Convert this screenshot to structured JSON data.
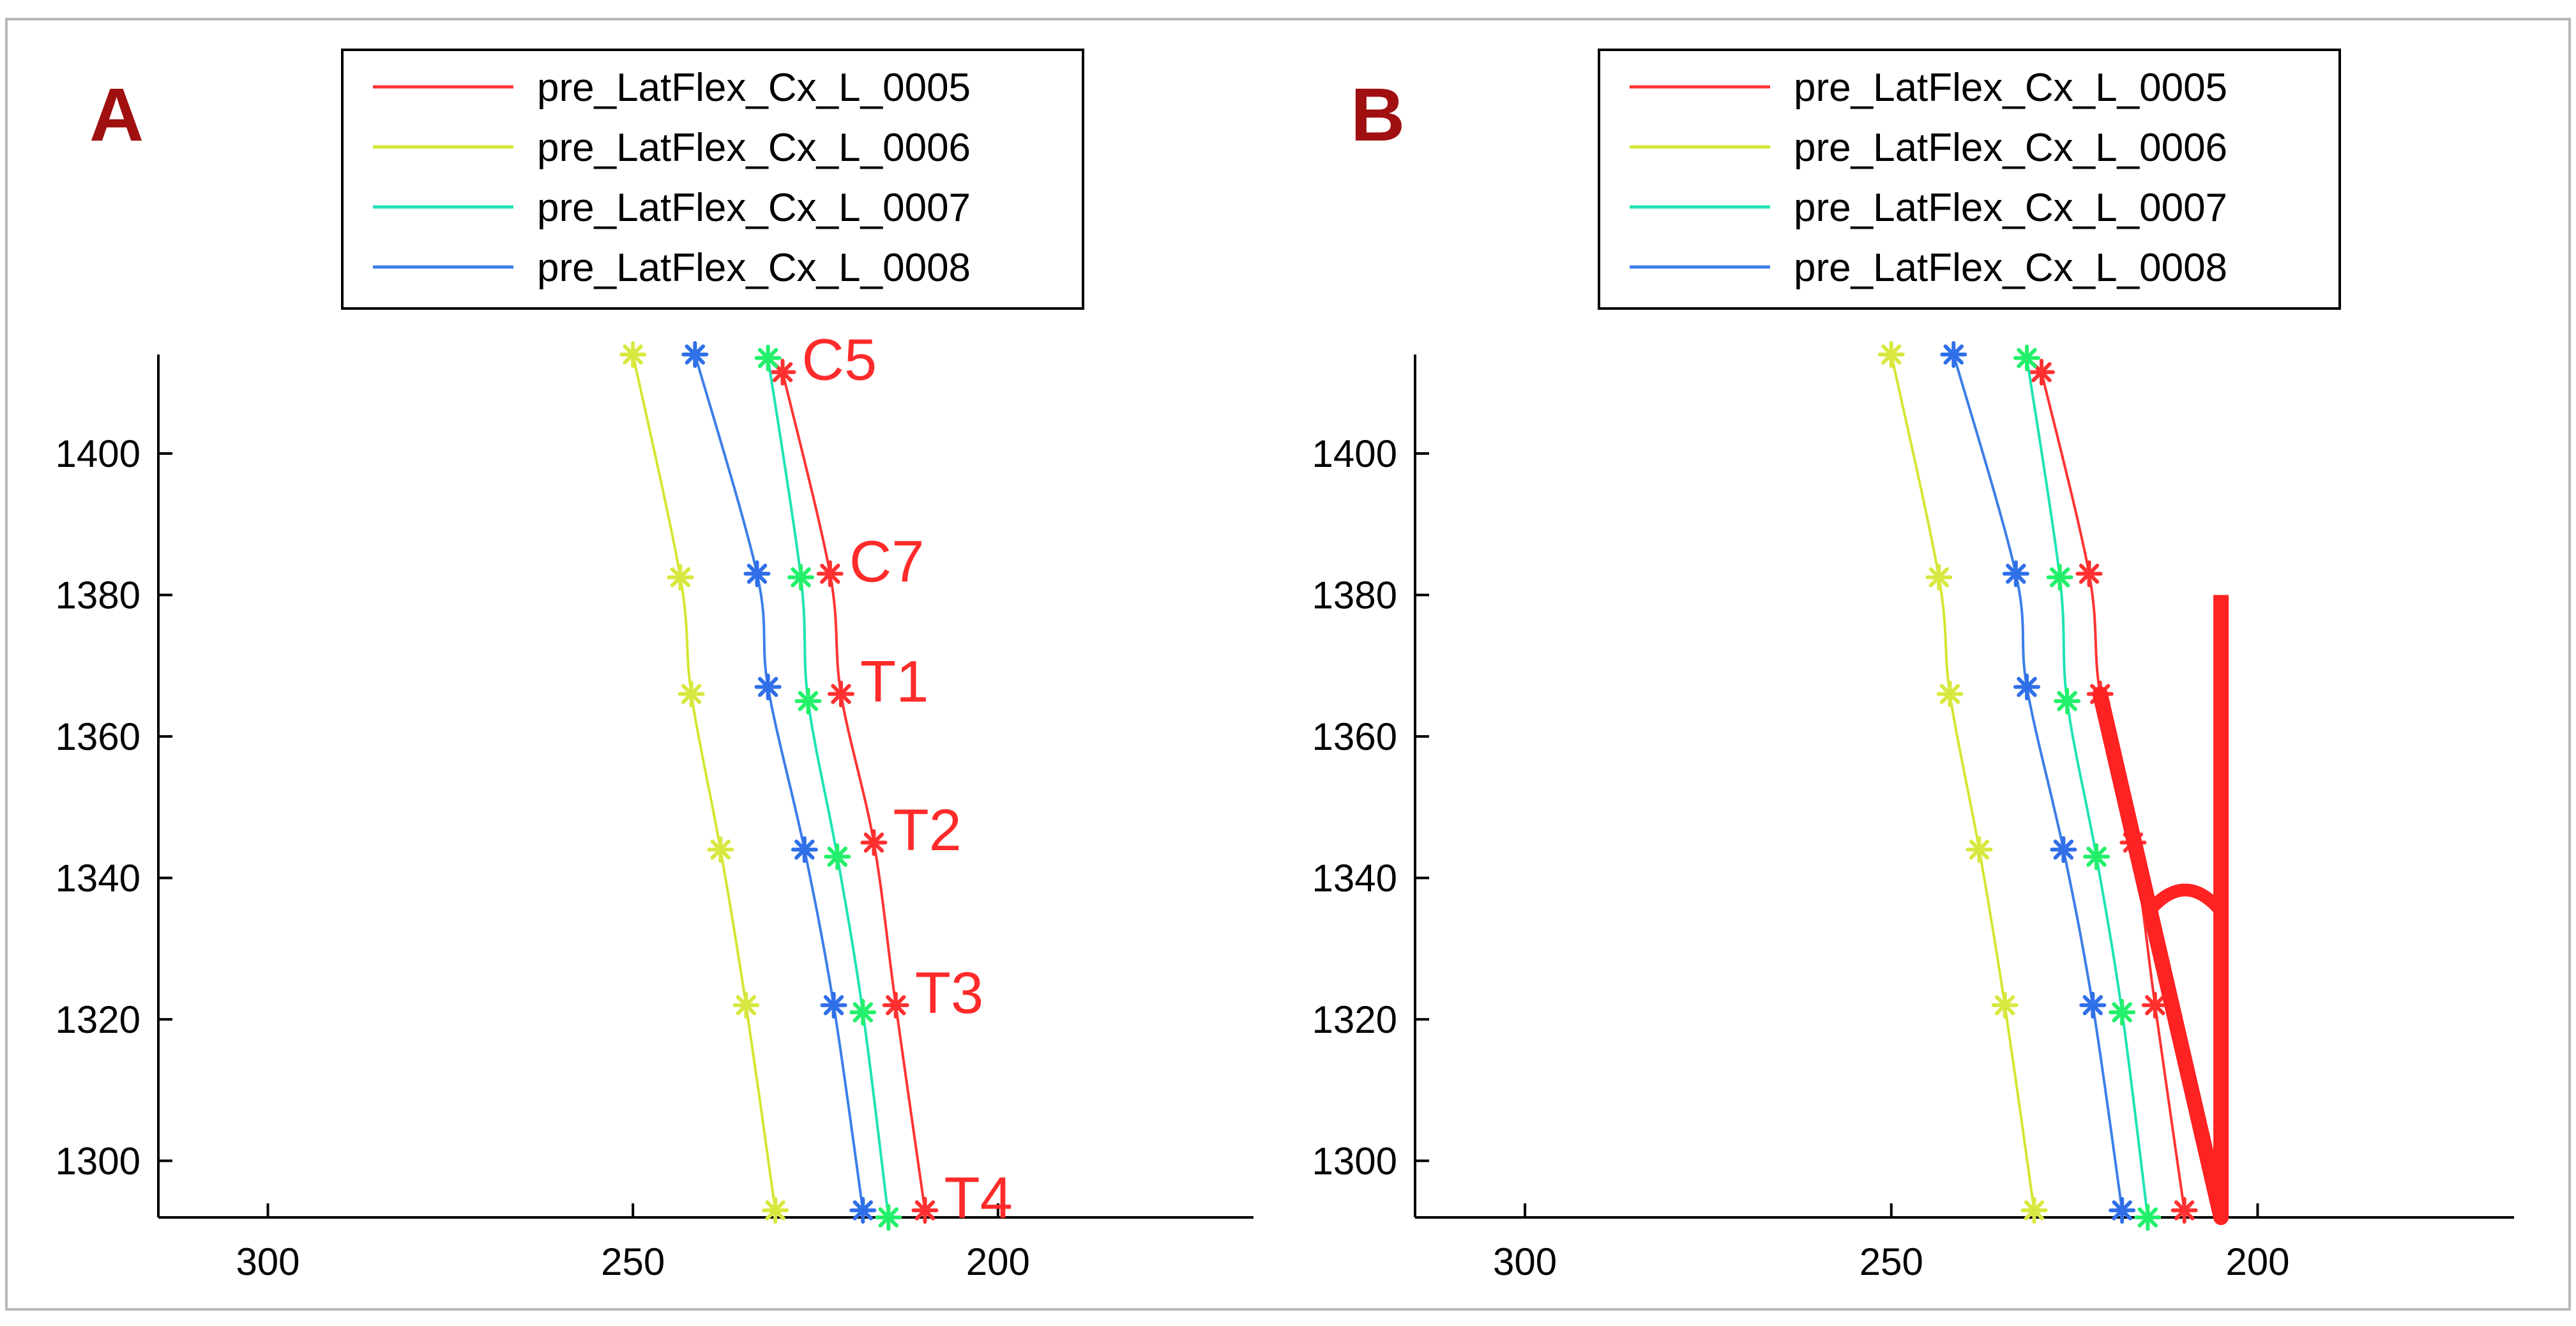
{
  "chart_data": [
    {
      "panel_label": "A",
      "type": "line",
      "title": "",
      "xlabel": "",
      "ylabel": "",
      "x_reversed": true,
      "xlim": [
        315,
        165
      ],
      "ylim": [
        1292,
        1414
      ],
      "x_ticks": [
        300,
        250,
        200
      ],
      "y_ticks": [
        1300,
        1320,
        1340,
        1360,
        1380,
        1400
      ],
      "x_tick_labels": [
        "300",
        "250",
        "200"
      ],
      "y_tick_labels": [
        "1300",
        "1320",
        "1340",
        "1360",
        "1380",
        "1400"
      ],
      "legend_position": "top",
      "series": [
        {
          "name": "pre_LatFlex_Cx_L_0005",
          "color": "#ff3333",
          "marker_color": "#ff3030",
          "points": [
            [
              229.5,
              1411.5
            ],
            [
              223,
              1383
            ],
            [
              221.5,
              1366
            ],
            [
              217,
              1345
            ],
            [
              214,
              1322
            ],
            [
              210,
              1293
            ]
          ]
        },
        {
          "name": "pre_LatFlex_Cx_L_0006",
          "color": "#d4e632",
          "marker_color": "#d8e840",
          "points": [
            [
              250,
              1414
            ],
            [
              243.5,
              1382.5
            ],
            [
              242,
              1366
            ],
            [
              238,
              1344
            ],
            [
              234.5,
              1322
            ],
            [
              230.5,
              1293
            ]
          ]
        },
        {
          "name": "pre_LatFlex_Cx_L_0007",
          "color": "#1ee3b4",
          "marker_color": "#22f06a",
          "points": [
            [
              231.5,
              1413.5
            ],
            [
              227,
              1382.5
            ],
            [
              226,
              1365
            ],
            [
              222,
              1343
            ],
            [
              218.5,
              1321
            ],
            [
              215,
              1292
            ]
          ]
        },
        {
          "name": "pre_LatFlex_Cx_L_0008",
          "color": "#3c7ee8",
          "marker_color": "#2f6fe8",
          "points": [
            [
              241.5,
              1414
            ],
            [
              233,
              1383
            ],
            [
              231.5,
              1367
            ],
            [
              226.5,
              1344
            ],
            [
              222.5,
              1322
            ],
            [
              218.5,
              1293
            ]
          ]
        }
      ],
      "vertebra_labels": [
        {
          "text": "C5",
          "x": 229.5,
          "y": 1411.5
        },
        {
          "text": "C7",
          "x": 223,
          "y": 1383
        },
        {
          "text": "T1",
          "x": 221.5,
          "y": 1366
        },
        {
          "text": "T2",
          "x": 217,
          "y": 1345
        },
        {
          "text": "T3",
          "x": 214,
          "y": 1322
        },
        {
          "text": "T4",
          "x": 210,
          "y": 1293
        }
      ],
      "angle_overlay": null
    },
    {
      "panel_label": "B",
      "type": "line",
      "title": "",
      "xlabel": "",
      "ylabel": "",
      "x_reversed": true,
      "xlim": [
        315,
        165
      ],
      "ylim": [
        1292,
        1414
      ],
      "x_ticks": [
        300,
        250,
        200
      ],
      "y_ticks": [
        1300,
        1320,
        1340,
        1360,
        1380,
        1400
      ],
      "x_tick_labels": [
        "300",
        "250",
        "200"
      ],
      "y_tick_labels": [
        "1300",
        "1320",
        "1340",
        "1360",
        "1380",
        "1400"
      ],
      "legend_position": "top",
      "series": [
        {
          "name": "pre_LatFlex_Cx_L_0005",
          "color": "#ff3333",
          "marker_color": "#ff3030",
          "points": [
            [
              229.5,
              1411.5
            ],
            [
              223,
              1383
            ],
            [
              221.5,
              1366
            ],
            [
              217,
              1345
            ],
            [
              214,
              1322
            ],
            [
              210,
              1293
            ]
          ]
        },
        {
          "name": "pre_LatFlex_Cx_L_0006",
          "color": "#d4e632",
          "marker_color": "#d8e840",
          "points": [
            [
              250,
              1414
            ],
            [
              243.5,
              1382.5
            ],
            [
              242,
              1366
            ],
            [
              238,
              1344
            ],
            [
              234.5,
              1322
            ],
            [
              230.5,
              1293
            ]
          ]
        },
        {
          "name": "pre_LatFlex_Cx_L_0007",
          "color": "#1ee3b4",
          "marker_color": "#22f06a",
          "points": [
            [
              231.5,
              1413.5
            ],
            [
              227,
              1382.5
            ],
            [
              226,
              1365
            ],
            [
              222,
              1343
            ],
            [
              218.5,
              1321
            ],
            [
              215,
              1292
            ]
          ]
        },
        {
          "name": "pre_LatFlex_Cx_L_0008",
          "color": "#3c7ee8",
          "marker_color": "#2f6fe8",
          "points": [
            [
              241.5,
              1414
            ],
            [
              233,
              1383
            ],
            [
              231.5,
              1367
            ],
            [
              226.5,
              1344
            ],
            [
              222.5,
              1322
            ],
            [
              218.5,
              1293
            ]
          ]
        }
      ],
      "vertebra_labels": [],
      "angle_overlay": {
        "color": "#ff2222",
        "vertex": [
          205,
          1292
        ],
        "vertical_top": [
          205,
          1380
        ],
        "slanted_top": [
          221.5,
          1366
        ],
        "arc_y": 1336
      }
    }
  ]
}
